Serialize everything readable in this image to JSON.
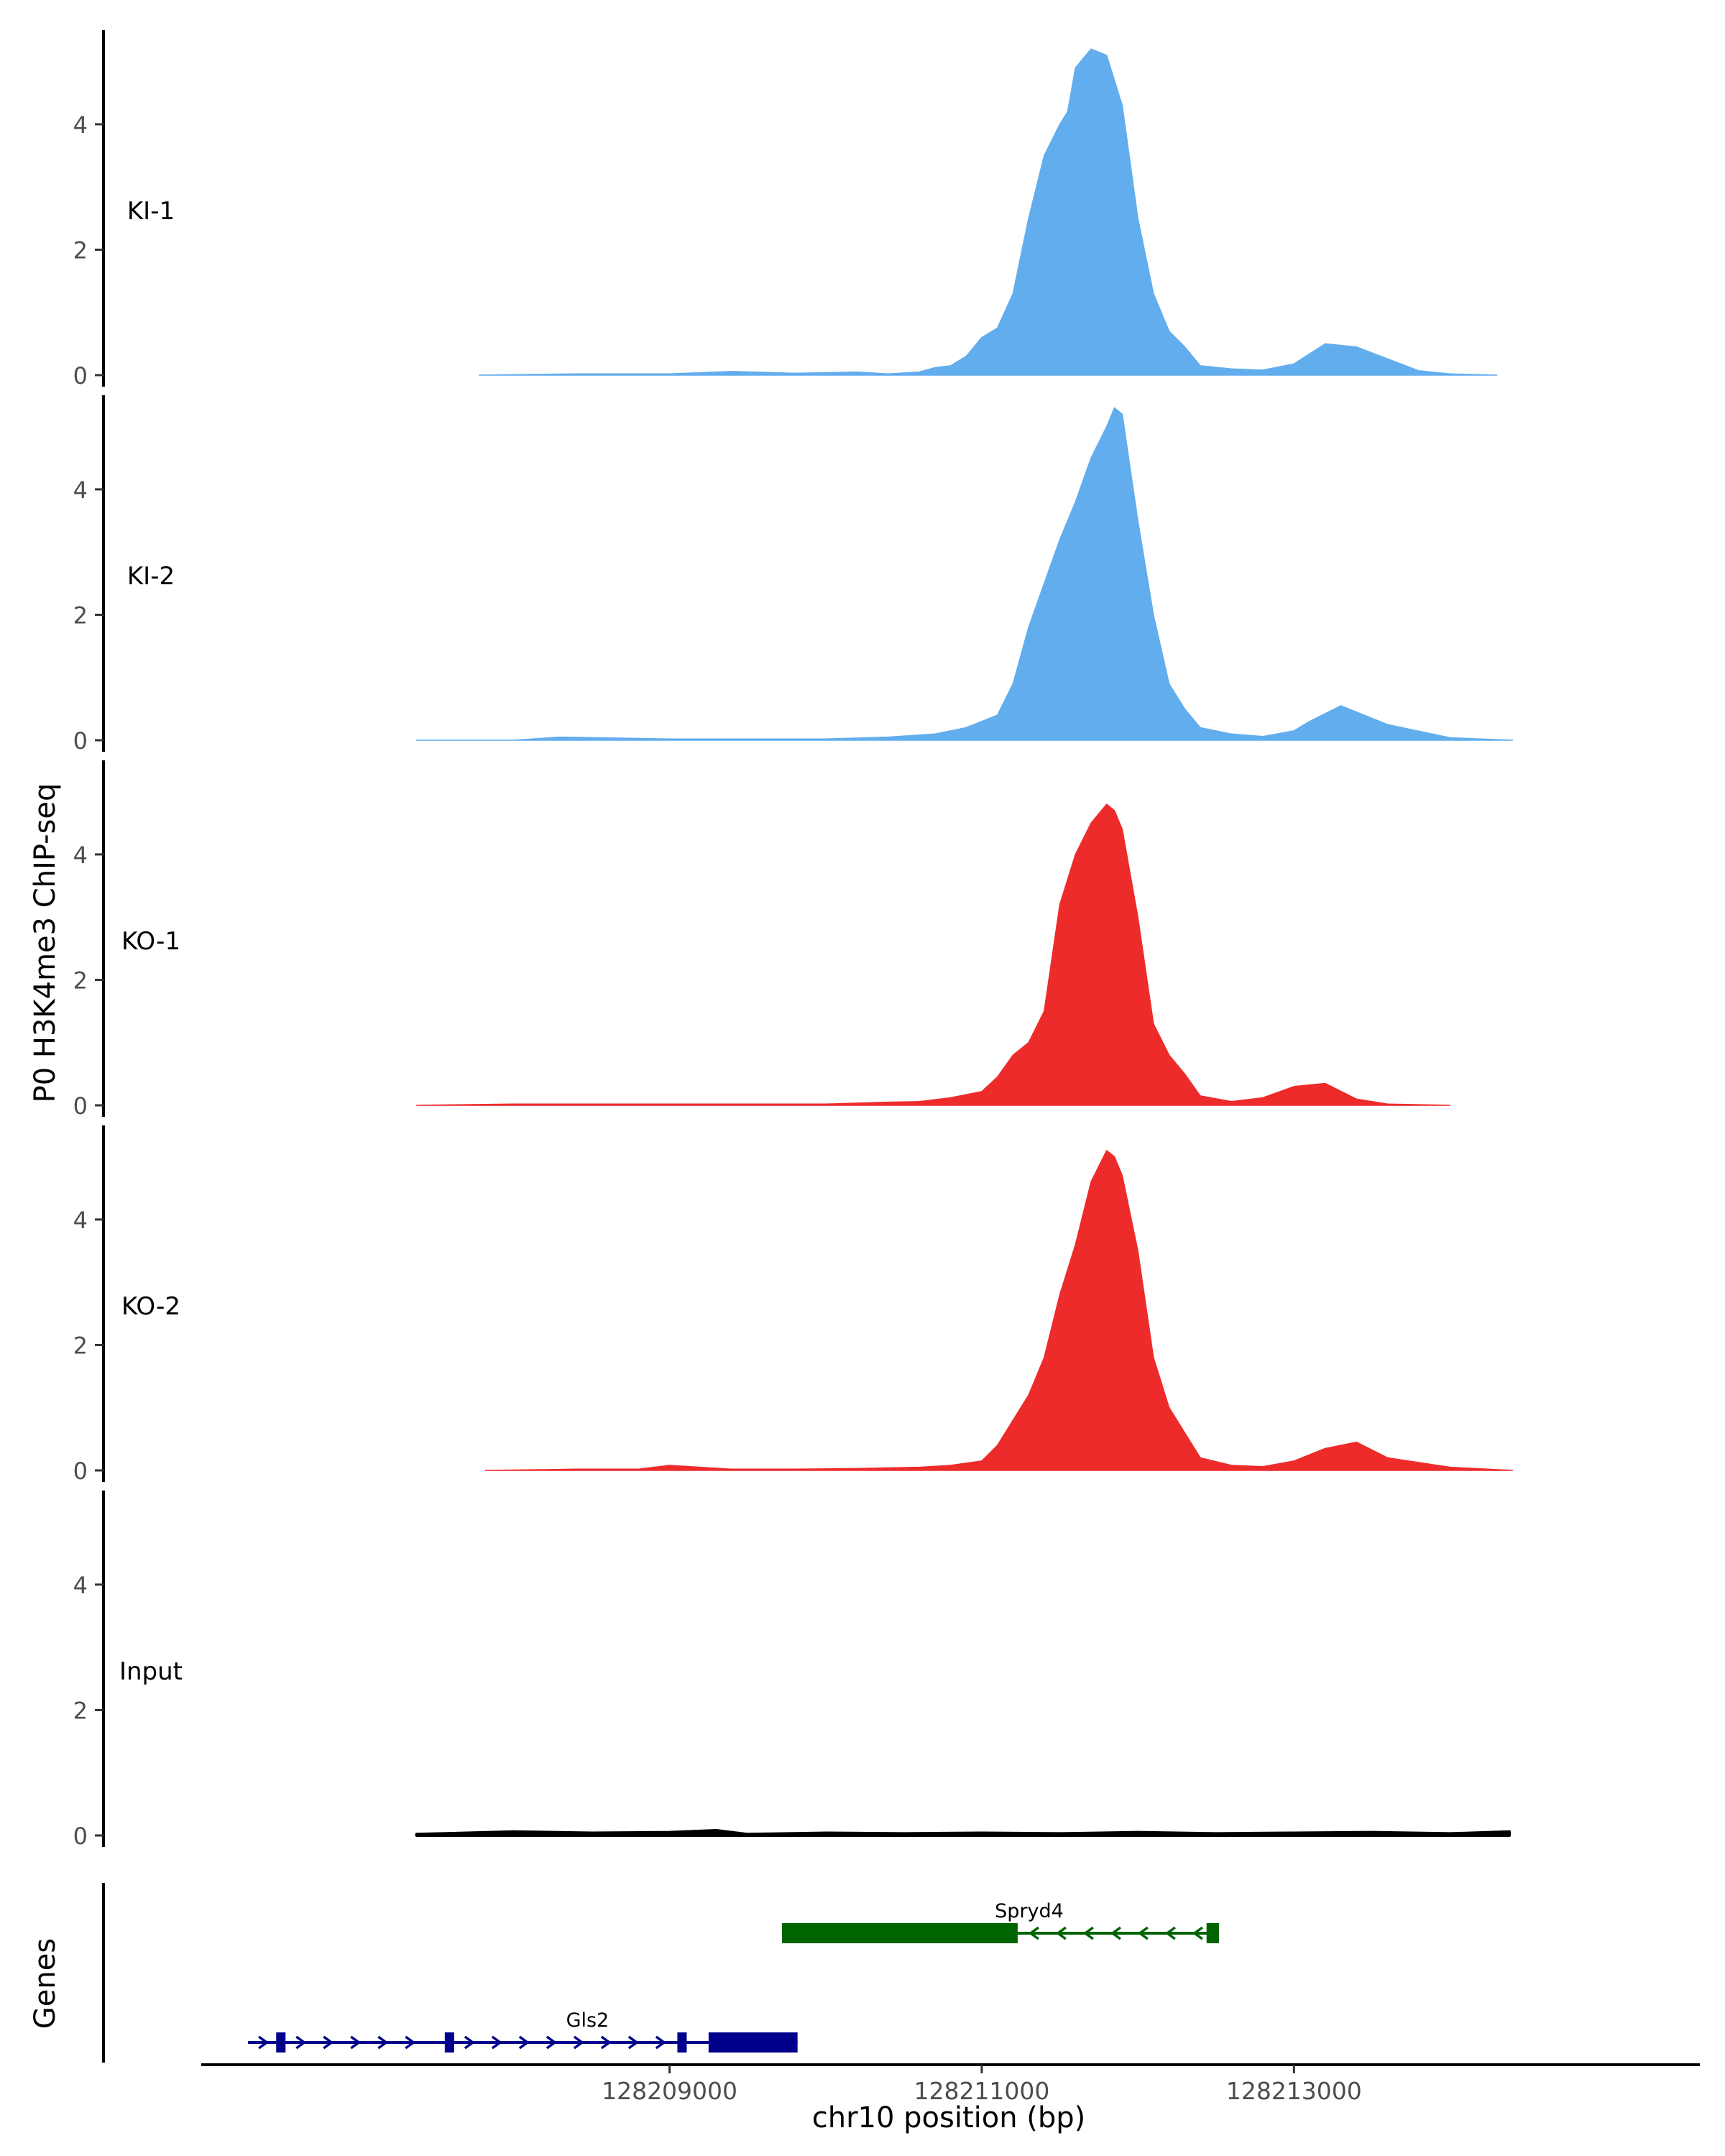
{
  "chart_data": {
    "type": "area",
    "ylabel": "P0 H3K4me3 ChIP-seq",
    "xlabel": "chr10 position (bp)",
    "x_range": [
      128206000,
      128215600
    ],
    "ylim": [
      0,
      5.5
    ],
    "y_ticks": [
      0,
      2,
      4
    ],
    "x_ticks": [
      128209000,
      128211000,
      128213000
    ],
    "x_tick_labels": [
      "128209000",
      "128211000",
      "128213000"
    ],
    "colors": {
      "KI": "#62aded",
      "KO": "#ee2b2b",
      "Input": "#000000",
      "spryd4": "#006400",
      "gls2": "#00008b"
    },
    "tracks": [
      {
        "name": "KI-1",
        "color": "#62aded",
        "x": [
          128207780,
          128208400,
          128208600,
          128209000,
          128209400,
          128209800,
          128210200,
          128210400,
          128210600,
          128210700,
          128210800,
          128210900,
          128211000,
          128211100,
          128211200,
          128211300,
          128211400,
          128211500,
          128211550,
          128211600,
          128211700,
          128211800,
          128211900,
          128212000,
          128212100,
          128212200,
          128212300,
          128212400,
          128212600,
          128212800,
          128213000,
          128213200,
          128213400,
          128213800,
          128214000,
          128214300
        ],
        "values": [
          0,
          0.02,
          0.02,
          0.02,
          0.06,
          0.03,
          0.05,
          0.02,
          0.05,
          0.12,
          0.15,
          0.3,
          0.6,
          0.75,
          1.3,
          2.5,
          3.5,
          4.0,
          4.2,
          4.9,
          5.2,
          5.1,
          4.3,
          2.5,
          1.3,
          0.7,
          0.45,
          0.15,
          0.1,
          0.08,
          0.18,
          0.5,
          0.45,
          0.07,
          0.02,
          0
        ]
      },
      {
        "name": "KI-2",
        "color": "#62aded",
        "x": [
          128207380,
          128208000,
          128208300,
          128209000,
          128209500,
          128210000,
          128210400,
          128210700,
          128210900,
          128211100,
          128211200,
          128211300,
          128211400,
          128211500,
          128211600,
          128211700,
          128211800,
          128211850,
          128211900,
          128212000,
          128212100,
          128212200,
          128212300,
          128212400,
          128212600,
          128212800,
          128213000,
          128213100,
          128213300,
          128213600,
          128214000,
          128214400
        ],
        "values": [
          0,
          0,
          0.05,
          0.02,
          0.02,
          0.02,
          0.05,
          0.1,
          0.2,
          0.4,
          0.9,
          1.8,
          2.5,
          3.2,
          3.8,
          4.5,
          5.0,
          5.3,
          5.2,
          3.5,
          2.0,
          0.9,
          0.5,
          0.2,
          0.1,
          0.06,
          0.15,
          0.3,
          0.55,
          0.25,
          0.04,
          0
        ]
      },
      {
        "name": "KO-1",
        "color": "#ee2b2b",
        "x": [
          128207380,
          128208000,
          128208500,
          128209000,
          128209500,
          128210000,
          128210400,
          128210600,
          128210800,
          128211000,
          128211100,
          128211200,
          128211300,
          128211400,
          128211500,
          128211600,
          128211700,
          128211800,
          128211850,
          128211900,
          128212000,
          128212100,
          128212200,
          128212300,
          128212400,
          128212600,
          128212800,
          128213000,
          128213200,
          128213400,
          128213600,
          128214000
        ],
        "values": [
          0,
          0.02,
          0.02,
          0.02,
          0.02,
          0.02,
          0.05,
          0.06,
          0.12,
          0.22,
          0.45,
          0.8,
          1.0,
          1.5,
          3.2,
          4.0,
          4.5,
          4.8,
          4.7,
          4.4,
          3.0,
          1.3,
          0.8,
          0.5,
          0.15,
          0.06,
          0.12,
          0.3,
          0.35,
          0.1,
          0.02,
          0
        ]
      },
      {
        "name": "KO-2",
        "color": "#ee2b2b",
        "x": [
          128207820,
          128208400,
          128208800,
          128209000,
          128209400,
          128209800,
          128210200,
          128210600,
          128210800,
          128211000,
          128211100,
          128211200,
          128211300,
          128211400,
          128211500,
          128211600,
          128211700,
          128211800,
          128211850,
          128211900,
          128212000,
          128212100,
          128212200,
          128212300,
          128212400,
          128212600,
          128212800,
          128213000,
          128213200,
          128213400,
          128213600,
          128214000,
          128214400
        ],
        "values": [
          0,
          0.02,
          0.02,
          0.08,
          0.02,
          0.02,
          0.03,
          0.05,
          0.08,
          0.15,
          0.4,
          0.8,
          1.2,
          1.8,
          2.8,
          3.6,
          4.6,
          5.1,
          5.0,
          4.7,
          3.5,
          1.8,
          1.0,
          0.6,
          0.2,
          0.08,
          0.06,
          0.15,
          0.35,
          0.45,
          0.2,
          0.05,
          0
        ]
      },
      {
        "name": "Input",
        "color": "#000000",
        "x": [
          128207380,
          128208000,
          128208500,
          128209000,
          128209300,
          128209500,
          128210000,
          128210500,
          128211000,
          128211500,
          128212000,
          128212500,
          128213000,
          128213500,
          128214000,
          128214380
        ],
        "values": [
          0.02,
          0.06,
          0.04,
          0.05,
          0.08,
          0.02,
          0.04,
          0.03,
          0.04,
          0.03,
          0.05,
          0.03,
          0.04,
          0.05,
          0.03,
          0.06
        ]
      }
    ],
    "gene_panel_label": "Genes",
    "genes": [
      {
        "name": "Spryd4",
        "color": "#006400",
        "strand": "-",
        "start": 128209720,
        "end": 128212520,
        "exons": [
          [
            128209720,
            128211230
          ],
          [
            128212440,
            128212520
          ]
        ]
      },
      {
        "name": "Gls2",
        "color": "#00008b",
        "strand": "+",
        "start": 128206300,
        "end": 128209820,
        "exons": [
          [
            128206480,
            128206540
          ],
          [
            128207560,
            128207620
          ],
          [
            128209050,
            128209110
          ],
          [
            128209250,
            128209820
          ]
        ]
      }
    ]
  }
}
